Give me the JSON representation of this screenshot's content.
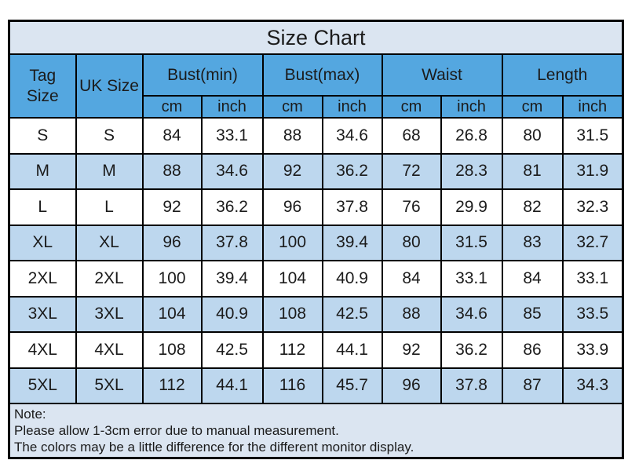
{
  "chart_data": {
    "type": "table",
    "title": "Size Chart",
    "column_groups": [
      {
        "label": "Tag Size"
      },
      {
        "label": "UK Size"
      },
      {
        "label": "Bust(min)",
        "subs": [
          "cm",
          "inch"
        ]
      },
      {
        "label": "Bust(max)",
        "subs": [
          "cm",
          "inch"
        ]
      },
      {
        "label": "Waist",
        "subs": [
          "cm",
          "inch"
        ]
      },
      {
        "label": "Length",
        "subs": [
          "cm",
          "inch"
        ]
      }
    ],
    "rows": [
      [
        "S",
        "S",
        "84",
        "33.1",
        "88",
        "34.6",
        "68",
        "26.8",
        "80",
        "31.5"
      ],
      [
        "M",
        "M",
        "88",
        "34.6",
        "92",
        "36.2",
        "72",
        "28.3",
        "81",
        "31.9"
      ],
      [
        "L",
        "L",
        "92",
        "36.2",
        "96",
        "37.8",
        "76",
        "29.9",
        "82",
        "32.3"
      ],
      [
        "XL",
        "XL",
        "96",
        "37.8",
        "100",
        "39.4",
        "80",
        "31.5",
        "83",
        "32.7"
      ],
      [
        "2XL",
        "2XL",
        "100",
        "39.4",
        "104",
        "40.9",
        "84",
        "33.1",
        "84",
        "33.1"
      ],
      [
        "3XL",
        "3XL",
        "104",
        "40.9",
        "108",
        "42.5",
        "88",
        "34.6",
        "85",
        "33.5"
      ],
      [
        "4XL",
        "4XL",
        "108",
        "42.5",
        "112",
        "44.1",
        "92",
        "36.2",
        "86",
        "33.9"
      ],
      [
        "5XL",
        "5XL",
        "112",
        "44.1",
        "116",
        "45.7",
        "96",
        "37.8",
        "87",
        "34.3"
      ]
    ]
  },
  "note": {
    "label": "Note:",
    "lines": [
      "Please allow 1-3cm error due to manual measurement.",
      "The colors may be a little difference for the different monitor display."
    ]
  },
  "colors": {
    "header_blue": "#54a7e0",
    "row_alt_blue": "#bdd7ee",
    "panel_bg": "#dbe5f1",
    "border": "#000000",
    "text": "#1b1b1b"
  }
}
